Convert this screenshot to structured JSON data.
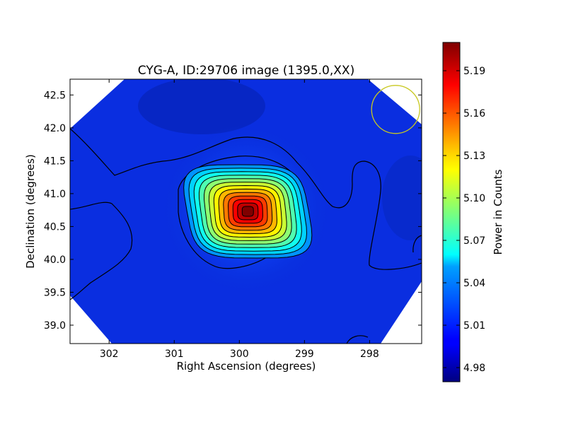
{
  "chart_data": {
    "type": "heatmap",
    "title": "CYG-A, ID:29706 image (1395.0,XX)",
    "xlabel": "Right Ascension (degrees)",
    "ylabel": "Declination (degrees)",
    "xlim": [
      302.6,
      297.2
    ],
    "ylim": [
      38.72,
      42.74
    ],
    "x_inverted": true,
    "x_ticks": [
      302,
      301,
      300,
      299,
      298
    ],
    "x_tick_labels": [
      "302",
      "301",
      "300",
      "299",
      "298"
    ],
    "y_ticks": [
      39.0,
      39.5,
      40.0,
      40.5,
      41.0,
      41.5,
      42.0,
      42.5
    ],
    "y_tick_labels": [
      "39.0",
      "39.5",
      "40.0",
      "40.5",
      "41.0",
      "41.5",
      "42.0",
      "42.5"
    ],
    "grid": false,
    "colormap": "jet",
    "source_peak": {
      "ra": 299.87,
      "dec": 40.73,
      "value": 5.21
    },
    "background_value": 4.99,
    "contour_levels": 13,
    "beam_circle": {
      "ra": 297.6,
      "dec": 42.28,
      "color": "#c8c820"
    },
    "colorbar": {
      "label": "Power in Counts",
      "min": 4.97,
      "max": 5.21,
      "ticks": [
        4.98,
        5.01,
        5.04,
        5.07,
        5.1,
        5.13,
        5.16,
        5.19
      ],
      "tick_labels": [
        "4.98",
        "5.01",
        "5.04",
        "5.07",
        "5.10",
        "5.13",
        "5.16",
        "5.19"
      ]
    }
  }
}
